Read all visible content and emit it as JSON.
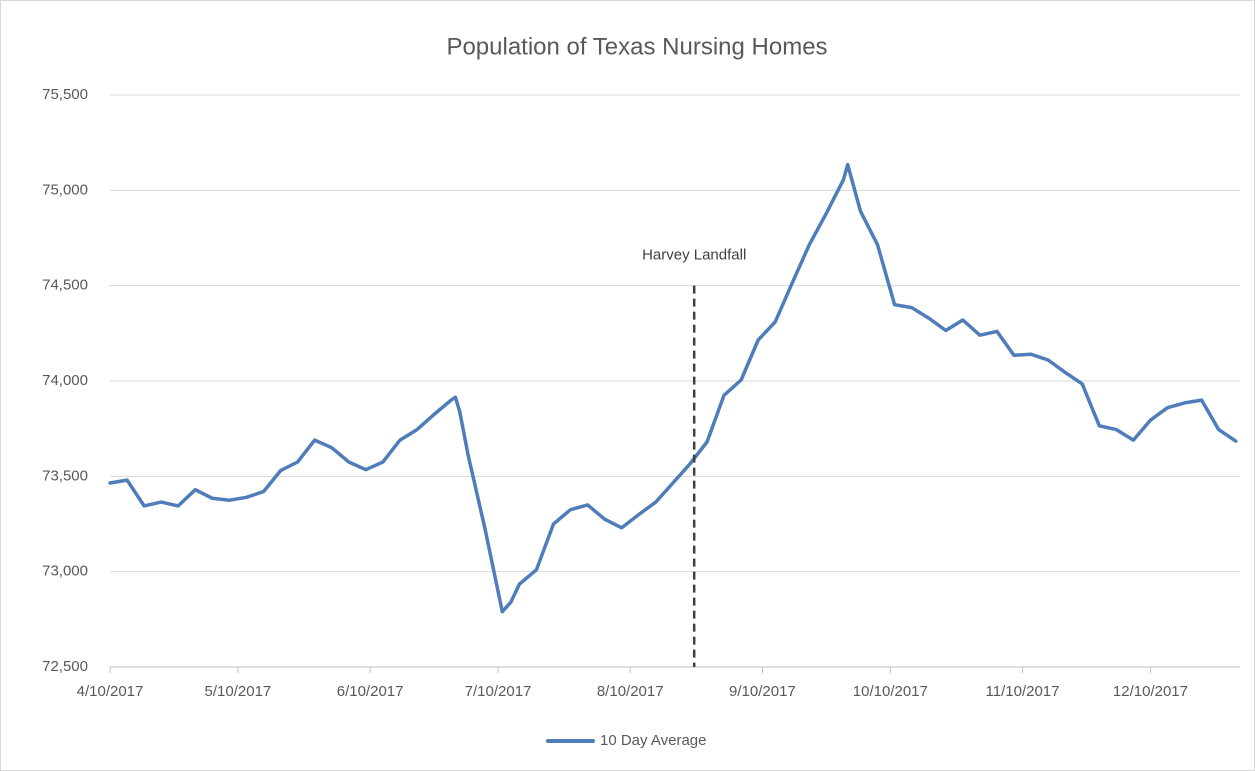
{
  "chart_data": {
    "type": "line",
    "title": "Population of Texas Nursing Homes",
    "x": [
      "2017-04-10",
      "2017-04-14",
      "2017-04-18",
      "2017-04-22",
      "2017-04-26",
      "2017-04-30",
      "2017-05-04",
      "2017-05-08",
      "2017-05-12",
      "2017-05-16",
      "2017-05-20",
      "2017-05-24",
      "2017-05-28",
      "2017-06-01",
      "2017-06-05",
      "2017-06-09",
      "2017-06-13",
      "2017-06-17",
      "2017-06-21",
      "2017-06-25",
      "2017-06-29",
      "2017-06-30",
      "2017-07-01",
      "2017-07-03",
      "2017-07-07",
      "2017-07-11",
      "2017-07-13",
      "2017-07-15",
      "2017-07-19",
      "2017-07-23",
      "2017-07-27",
      "2017-07-31",
      "2017-08-04",
      "2017-08-08",
      "2017-08-12",
      "2017-08-16",
      "2017-08-20",
      "2017-08-24",
      "2017-08-28",
      "2017-09-01",
      "2017-09-05",
      "2017-09-09",
      "2017-09-13",
      "2017-09-17",
      "2017-09-21",
      "2017-09-25",
      "2017-09-29",
      "2017-09-30",
      "2017-10-03",
      "2017-10-07",
      "2017-10-11",
      "2017-10-15",
      "2017-10-19",
      "2017-10-23",
      "2017-10-27",
      "2017-10-31",
      "2017-11-04",
      "2017-11-08",
      "2017-11-12",
      "2017-11-16",
      "2017-11-20",
      "2017-11-24",
      "2017-11-28",
      "2017-12-02",
      "2017-12-06",
      "2017-12-10",
      "2017-12-14",
      "2017-12-18",
      "2017-12-22",
      "2017-12-26",
      "2017-12-30"
    ],
    "series": [
      {
        "name": "10 Day Average",
        "color": "#4f7dba",
        "values": [
          73465,
          73480,
          73345,
          73365,
          73345,
          73430,
          73385,
          73375,
          73390,
          73420,
          73530,
          73575,
          73690,
          73650,
          73575,
          73535,
          73575,
          73690,
          73745,
          73825,
          73900,
          73915,
          73840,
          73610,
          73220,
          72790,
          72840,
          72935,
          73010,
          73250,
          73325,
          73350,
          73275,
          73230,
          73300,
          73365,
          73465,
          73565,
          73680,
          73925,
          74005,
          74215,
          74310,
          74515,
          74715,
          74880,
          75055,
          75135,
          74890,
          74715,
          74400,
          74385,
          74330,
          74265,
          74320,
          74240,
          74260,
          74135,
          74140,
          74110,
          74045,
          73985,
          73765,
          73745,
          73690,
          73795,
          73860,
          73885,
          73900,
          73745,
          73685
        ]
      }
    ],
    "xlim": [
      "2017-04-10",
      "2017-12-31"
    ],
    "xticks": [
      {
        "value": "2017-04-10",
        "label": "4/10/2017"
      },
      {
        "value": "2017-05-10",
        "label": "5/10/2017"
      },
      {
        "value": "2017-06-10",
        "label": "6/10/2017"
      },
      {
        "value": "2017-07-10",
        "label": "7/10/2017"
      },
      {
        "value": "2017-08-10",
        "label": "8/10/2017"
      },
      {
        "value": "2017-09-10",
        "label": "9/10/2017"
      },
      {
        "value": "2017-10-10",
        "label": "10/10/2017"
      },
      {
        "value": "2017-11-10",
        "label": "11/10/2017"
      },
      {
        "value": "2017-12-10",
        "label": "12/10/2017"
      }
    ],
    "ylim": [
      72500,
      75500
    ],
    "yticks": [
      {
        "value": 72500,
        "label": "72,500"
      },
      {
        "value": 73000,
        "label": "73,000"
      },
      {
        "value": 73500,
        "label": "73,500"
      },
      {
        "value": 74000,
        "label": "74,000"
      },
      {
        "value": 74500,
        "label": "74,500"
      },
      {
        "value": 75000,
        "label": "75,000"
      },
      {
        "value": 75500,
        "label": "75,500"
      }
    ],
    "grid": true,
    "legend": "bottom",
    "annotations": [
      {
        "text": "Harvey Landfall",
        "x": "2017-08-25",
        "y": 74500
      }
    ]
  }
}
